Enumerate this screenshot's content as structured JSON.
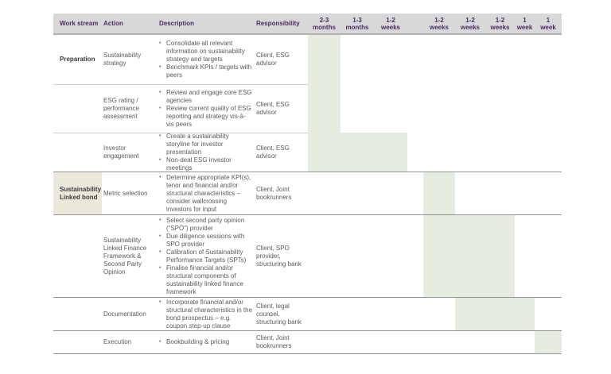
{
  "colors": {
    "header_bg": "#d8d8d8",
    "header_text": "#4b2c63",
    "bar_green": "#e6ede0",
    "workstream_highlight": "#ebe7da",
    "body_text": "#5a5a5a",
    "section_border": "#949494",
    "row_separator": "#cfcfcf"
  },
  "table": {
    "headers": {
      "workstream": "Work stream",
      "action": "Action",
      "description": "Description",
      "responsibility": "Responsibility"
    },
    "timeline_headers": [
      {
        "l1": "2-3",
        "l2": "months"
      },
      {
        "l1": "1-3",
        "l2": "months"
      },
      {
        "l1": "1-2",
        "l2": "weeks"
      },
      {
        "l1": "1-2",
        "l2": "weeks"
      },
      {
        "l1": "1-2",
        "l2": "weeks"
      },
      {
        "l1": "1-2",
        "l2": "weeks"
      },
      {
        "l1": "1",
        "l2": "week"
      },
      {
        "l1": "1",
        "l2": "week"
      }
    ],
    "rows": [
      {
        "workstream": "Preparation",
        "action": "Sustainability strategy",
        "bullets": [
          "Consolidate all relevant information on sustainability strategy and targets",
          "Benchmark KPIs / targets with peers"
        ],
        "responsibility": "Client, ESG advisor",
        "bars": [
          [
            1,
            1
          ]
        ]
      },
      {
        "workstream": "",
        "action": "ESG rating / performance assessment",
        "bullets": [
          "Review and engage core ESG agencies",
          "Review current quality of ESG reporting and strategy vis-à-vis peers"
        ],
        "responsibility": "Client, ESG advisor",
        "bars": [
          [
            1,
            1
          ]
        ]
      },
      {
        "workstream": "",
        "action": "Investor engagement",
        "bullets": [
          "Create a sustainability storyline for investor presentation",
          "Non-deal ESG investor meetings"
        ],
        "responsibility": "Client, ESG advisor",
        "bars": [
          [
            1,
            1
          ],
          [
            2,
            3
          ]
        ]
      },
      {
        "workstream": "Sustainability Linked bond",
        "action": "Metric selection",
        "bullets": [
          "Determine appropriate KPI(s), tenor and financial and/or structural characteristics – consider wallcrossing investors for input"
        ],
        "responsibility": "Client, Joint bookrunners",
        "bars": [
          [
            4,
            4
          ]
        ]
      },
      {
        "workstream": "",
        "action": "Sustainability Linked Finance Framework & Second Party Opinion",
        "bullets": [
          "Select second party opinion (“SPO”) provider",
          "Due diligence sessions with SPO provider",
          "Calibration of Sustainability Performance Targets (SPTs)",
          "Finalise financial and/or structural components of sustainability linked finance framework"
        ],
        "responsibility": "Client, SPO provider, structuring bank",
        "bars": [
          [
            4,
            6
          ]
        ]
      },
      {
        "workstream": "",
        "action": "Documentation",
        "bullets": [
          "Incorporate financial and/or structural characteristics in the bond prospectus – e.g. coupon step-up clause"
        ],
        "responsibility": "Client, legal counsel, structuring bank",
        "bars": [
          [
            5,
            7
          ]
        ]
      },
      {
        "workstream": "",
        "action": "Execution",
        "bullets": [
          "Bookbuilding & pricing"
        ],
        "responsibility": "Client, Joint bookrunners",
        "bars": [
          [
            8,
            8
          ]
        ]
      }
    ]
  }
}
